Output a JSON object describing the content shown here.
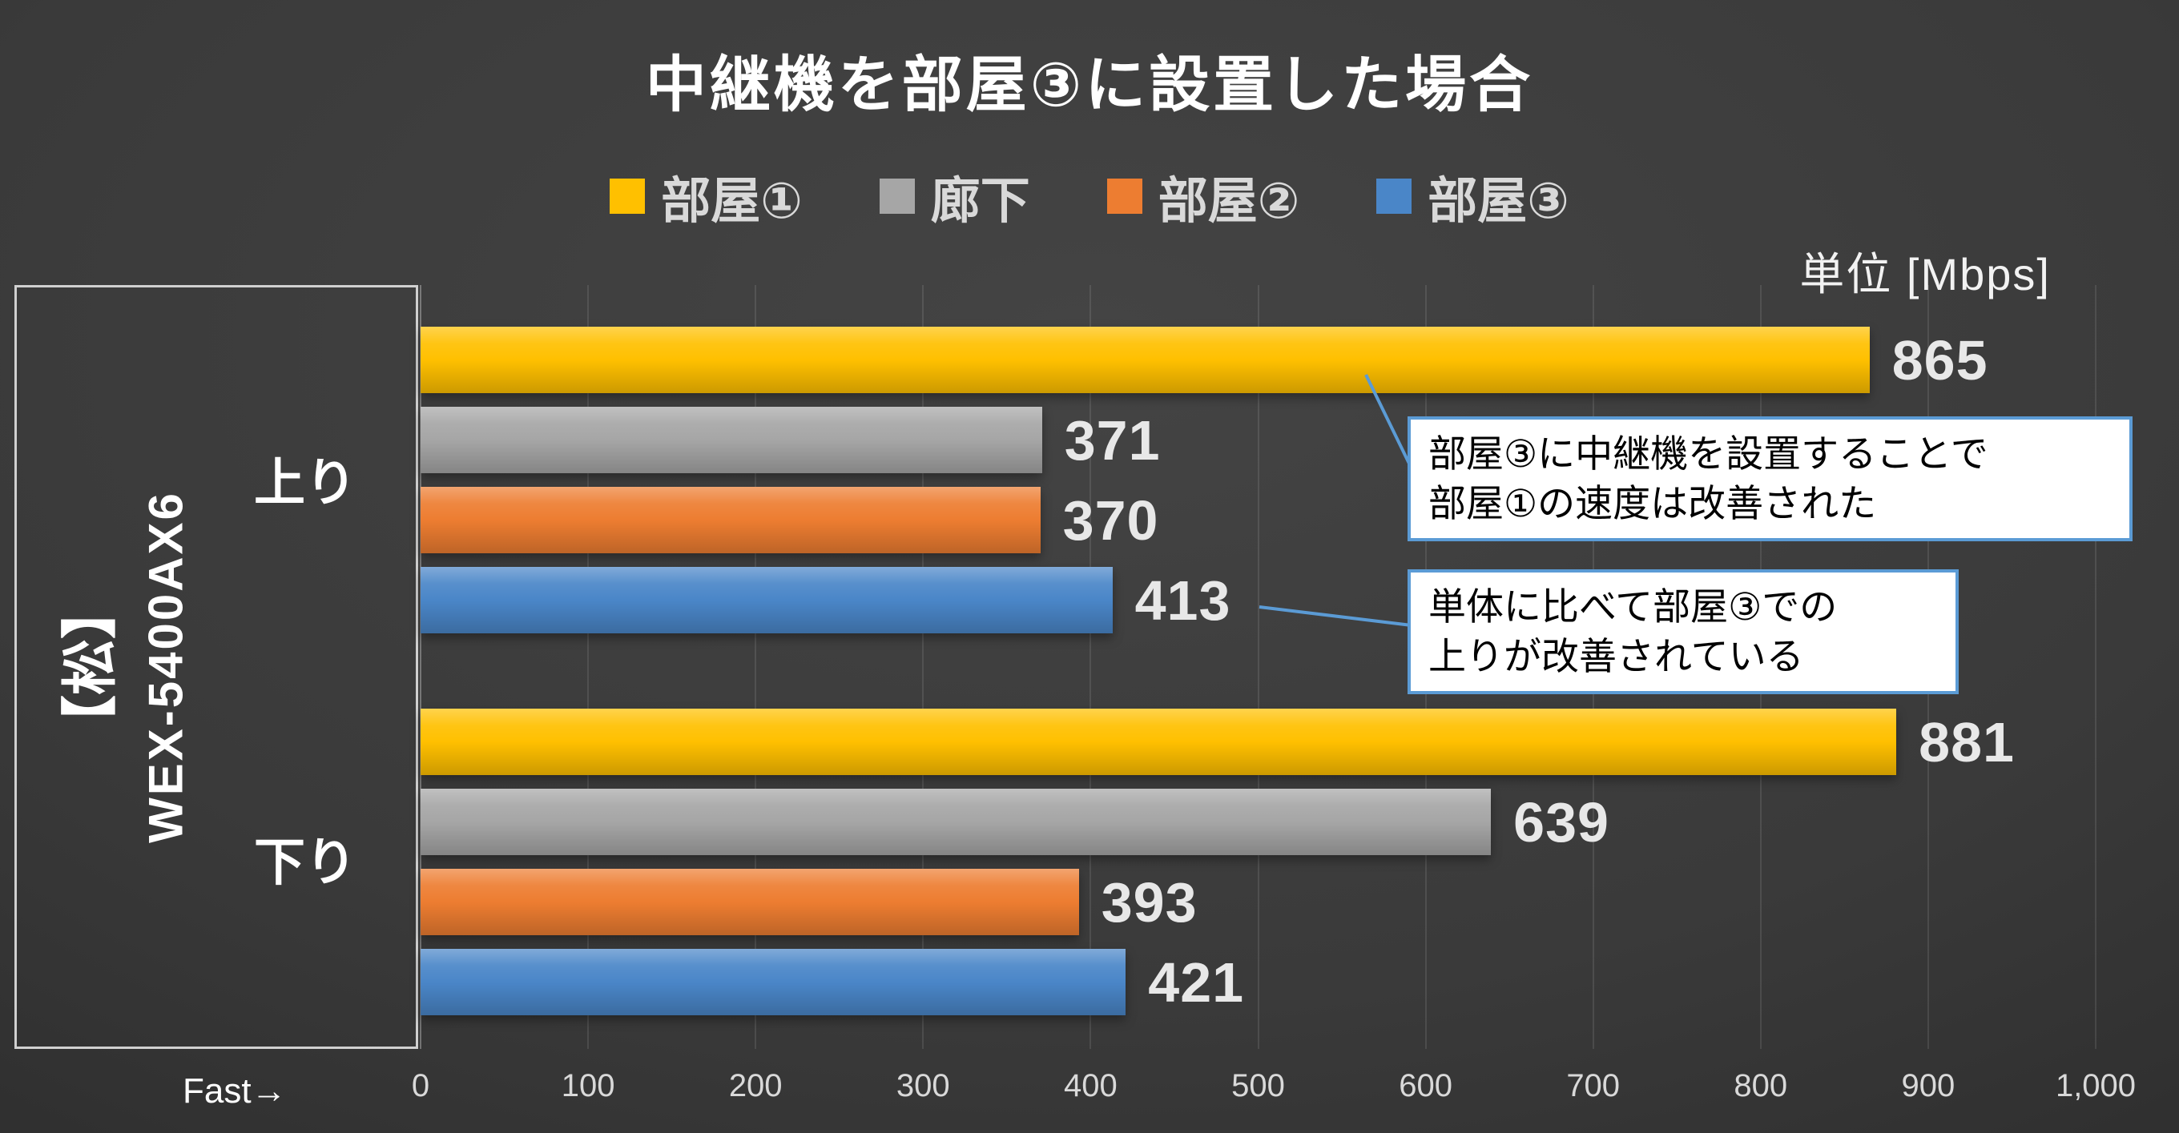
{
  "title": "中継機を部屋③に設置した場合",
  "unit_label": "単位 [Mbps]",
  "fast_label": "Fast→",
  "device_box": {
    "grade": "【松】",
    "model": "WEX-5400AX6"
  },
  "callouts": [
    {
      "lines": [
        "部屋③に中継機を設置することで",
        "部屋①の速度は改善された"
      ]
    },
    {
      "lines": [
        "単体に比べて部屋③での",
        "上りが改善されている"
      ]
    }
  ],
  "colors": {
    "background": "#3a3a3a",
    "callout_border": "#5B9BD5",
    "value_label": "#e8e8e8",
    "axis_label": "#d9d9d9"
  },
  "chart_data": {
    "type": "bar",
    "orientation": "horizontal",
    "title": "中継機を部屋③に設置した場合",
    "unit": "Mbps",
    "categories": [
      "上り",
      "下り"
    ],
    "series": [
      {
        "name": "部屋①",
        "color": "#FFC000",
        "values": [
          865,
          881
        ]
      },
      {
        "name": "廊下",
        "color": "#A6A6A6",
        "values": [
          371,
          639
        ]
      },
      {
        "name": "部屋②",
        "color": "#ED7D31",
        "values": [
          370,
          393
        ]
      },
      {
        "name": "部屋③",
        "color": "#4A86C8",
        "values": [
          413,
          421
        ]
      }
    ],
    "xlim": [
      0,
      1000
    ],
    "x_ticks": [
      "0",
      "100",
      "200",
      "300",
      "400",
      "500",
      "600",
      "700",
      "800",
      "900",
      "1,000"
    ],
    "grid": true,
    "legend_position": "top"
  }
}
